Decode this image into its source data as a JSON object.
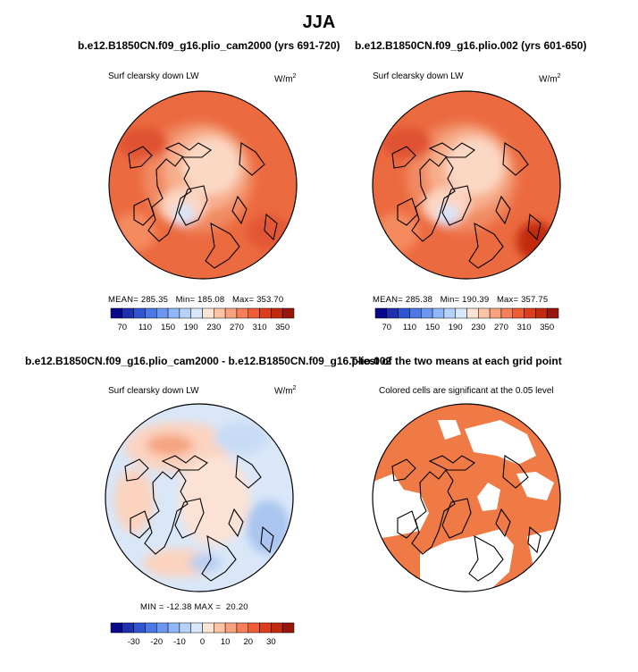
{
  "title": "JJA",
  "panels": [
    {
      "title": "b.e12.B1850CN.f09_g16.plio_cam2000 (yrs 691-720)",
      "variable": "Surf clearsky down LW",
      "units": "W/m",
      "stats": {
        "mean_label": "MEAN=",
        "mean": "285.35",
        "min_label": "Min=",
        "min": "185.08",
        "max_label": "Max=",
        "max": "353.70"
      }
    },
    {
      "title": "b.e12.B1850CN.f09_g16.plio.002 (yrs 601-650)",
      "variable": "Surf clearsky down LW",
      "units": "W/m",
      "stats": {
        "mean_label": "MEAN=",
        "mean": "285.38",
        "min_label": "Min=",
        "min": "190.39",
        "max_label": "Max=",
        "max": "357.75"
      }
    },
    {
      "title": "b.e12.B1850CN.f09_g16.plio_cam2000 - b.e12.B1850CN.f09_g16.plio.002",
      "variable": "Surf clearsky down LW",
      "units": "W/m",
      "stats": {
        "min_label": "MIN =",
        "min": "-12.38",
        "max_label": "MAX =",
        "max": "20.20"
      }
    },
    {
      "title": "T-test of the two means at each grid point",
      "variable": "Colored cells are significant at the 0.05 level"
    }
  ],
  "units_superscript": "2",
  "colors": {
    "full_scale": [
      "#08088c",
      "#1f2fb0",
      "#2f55d0",
      "#4a78e6",
      "#6a97f0",
      "#8fb6f8",
      "#b5d2fb",
      "#d8e7fb",
      "#fde3d3",
      "#fcc4a4",
      "#faa27d",
      "#f57f58",
      "#ec5c35",
      "#dc3d1c",
      "#c22a0f",
      "#97150a"
    ],
    "diff_scale": [
      "#08088c",
      "#1f2fb0",
      "#2f55d0",
      "#4a78e6",
      "#6a97f0",
      "#8fb6f8",
      "#b5d2fb",
      "#d8e7fb",
      "#fde3d3",
      "#fcc4a4",
      "#faa27d",
      "#f57f58",
      "#ec5c35",
      "#dc3d1c",
      "#c22a0f",
      "#97150a"
    ],
    "significant": "#ef7a45",
    "map_bg_warm": "#ec6a40",
    "map_center_warm": "#fbd8c4",
    "diff_bg": "#d9e7f8",
    "diff_warm": "#fbd3bf"
  },
  "chart_data": [
    {
      "type": "heatmap",
      "projection": "north polar stereographic",
      "season": "JJA",
      "title": "b.e12.B1850CN.f09_g16.plio_cam2000 (yrs 691-720)",
      "variable": "Surf clearsky down LW",
      "units": "W/m^2",
      "mean": 285.35,
      "min": 185.08,
      "max": 353.7,
      "colorbar_levels": [
        70,
        90,
        110,
        130,
        150,
        170,
        190,
        210,
        230,
        250,
        270,
        290,
        310,
        330,
        350
      ],
      "colorbar_tick_labels": [
        "70",
        "110",
        "150",
        "190",
        "230",
        "270",
        "310",
        "350"
      ]
    },
    {
      "type": "heatmap",
      "projection": "north polar stereographic",
      "season": "JJA",
      "title": "b.e12.B1850CN.f09_g16.plio.002 (yrs 601-650)",
      "variable": "Surf clearsky down LW",
      "units": "W/m^2",
      "mean": 285.38,
      "min": 190.39,
      "max": 357.75,
      "colorbar_levels": [
        70,
        90,
        110,
        130,
        150,
        170,
        190,
        210,
        230,
        250,
        270,
        290,
        310,
        330,
        350
      ],
      "colorbar_tick_labels": [
        "70",
        "110",
        "150",
        "190",
        "230",
        "270",
        "310",
        "350"
      ]
    },
    {
      "type": "heatmap",
      "projection": "north polar stereographic",
      "season": "JJA",
      "title": "b.e12.B1850CN.f09_g16.plio_cam2000 - b.e12.B1850CN.f09_g16.plio.002",
      "variable": "Surf clearsky down LW",
      "units": "W/m^2",
      "min": -12.38,
      "max": 20.2,
      "colorbar_levels": [
        -35,
        -30,
        -25,
        -20,
        -15,
        -10,
        -5,
        0,
        5,
        10,
        15,
        20,
        25,
        30,
        35
      ],
      "colorbar_tick_labels": [
        "-30",
        "-20",
        "-10",
        "0",
        "10",
        "20",
        "30"
      ]
    },
    {
      "type": "heatmap",
      "projection": "north polar stereographic",
      "title": "T-test of the two means at each grid point",
      "description_label": "Colored cells are significant at the 0.05 level",
      "significance_level": 0.05
    }
  ]
}
